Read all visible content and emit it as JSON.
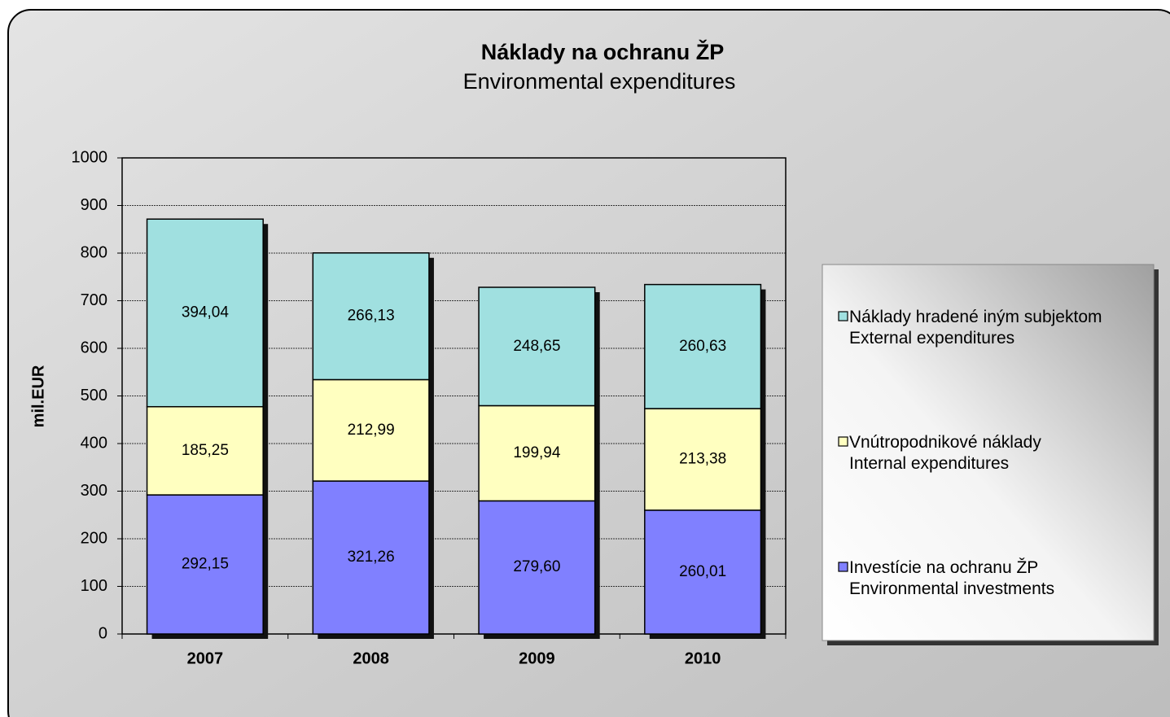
{
  "chart_data": {
    "type": "stacked_bar",
    "title": "Náklady na ochranu ŽP",
    "subtitle": "Environmental expenditures",
    "y_label": "mil.EUR",
    "categories": [
      "2007",
      "2008",
      "2009",
      "2010"
    ],
    "series": [
      {
        "name": "Investície na ochranu ŽP\nEnvironmental investments",
        "color": "#8080ff",
        "values": [
          292.15,
          321.26,
          279.6,
          260.01
        ],
        "value_labels": [
          "292,15",
          "321,26",
          "279,60",
          "260,01"
        ]
      },
      {
        "name": "Vnútropodnikové náklady\nInternal expenditures",
        "color": "#ffffc0",
        "values": [
          185.25,
          212.99,
          199.94,
          213.38
        ],
        "value_labels": [
          "185,25",
          "212,99",
          "199,94",
          "213,38"
        ]
      },
      {
        "name": "Náklady hradené iným subjektom\nExternal expenditures",
        "color": "#a0e0e0",
        "values": [
          394.04,
          266.13,
          248.65,
          260.63
        ],
        "value_labels": [
          "394,04",
          "266,13",
          "248,65",
          "260,63"
        ]
      }
    ],
    "ylim": [
      0,
      1000
    ],
    "yticks": [
      0,
      100,
      200,
      300,
      400,
      500,
      600,
      700,
      800,
      900,
      1000
    ],
    "grid": true,
    "legend": "right"
  }
}
